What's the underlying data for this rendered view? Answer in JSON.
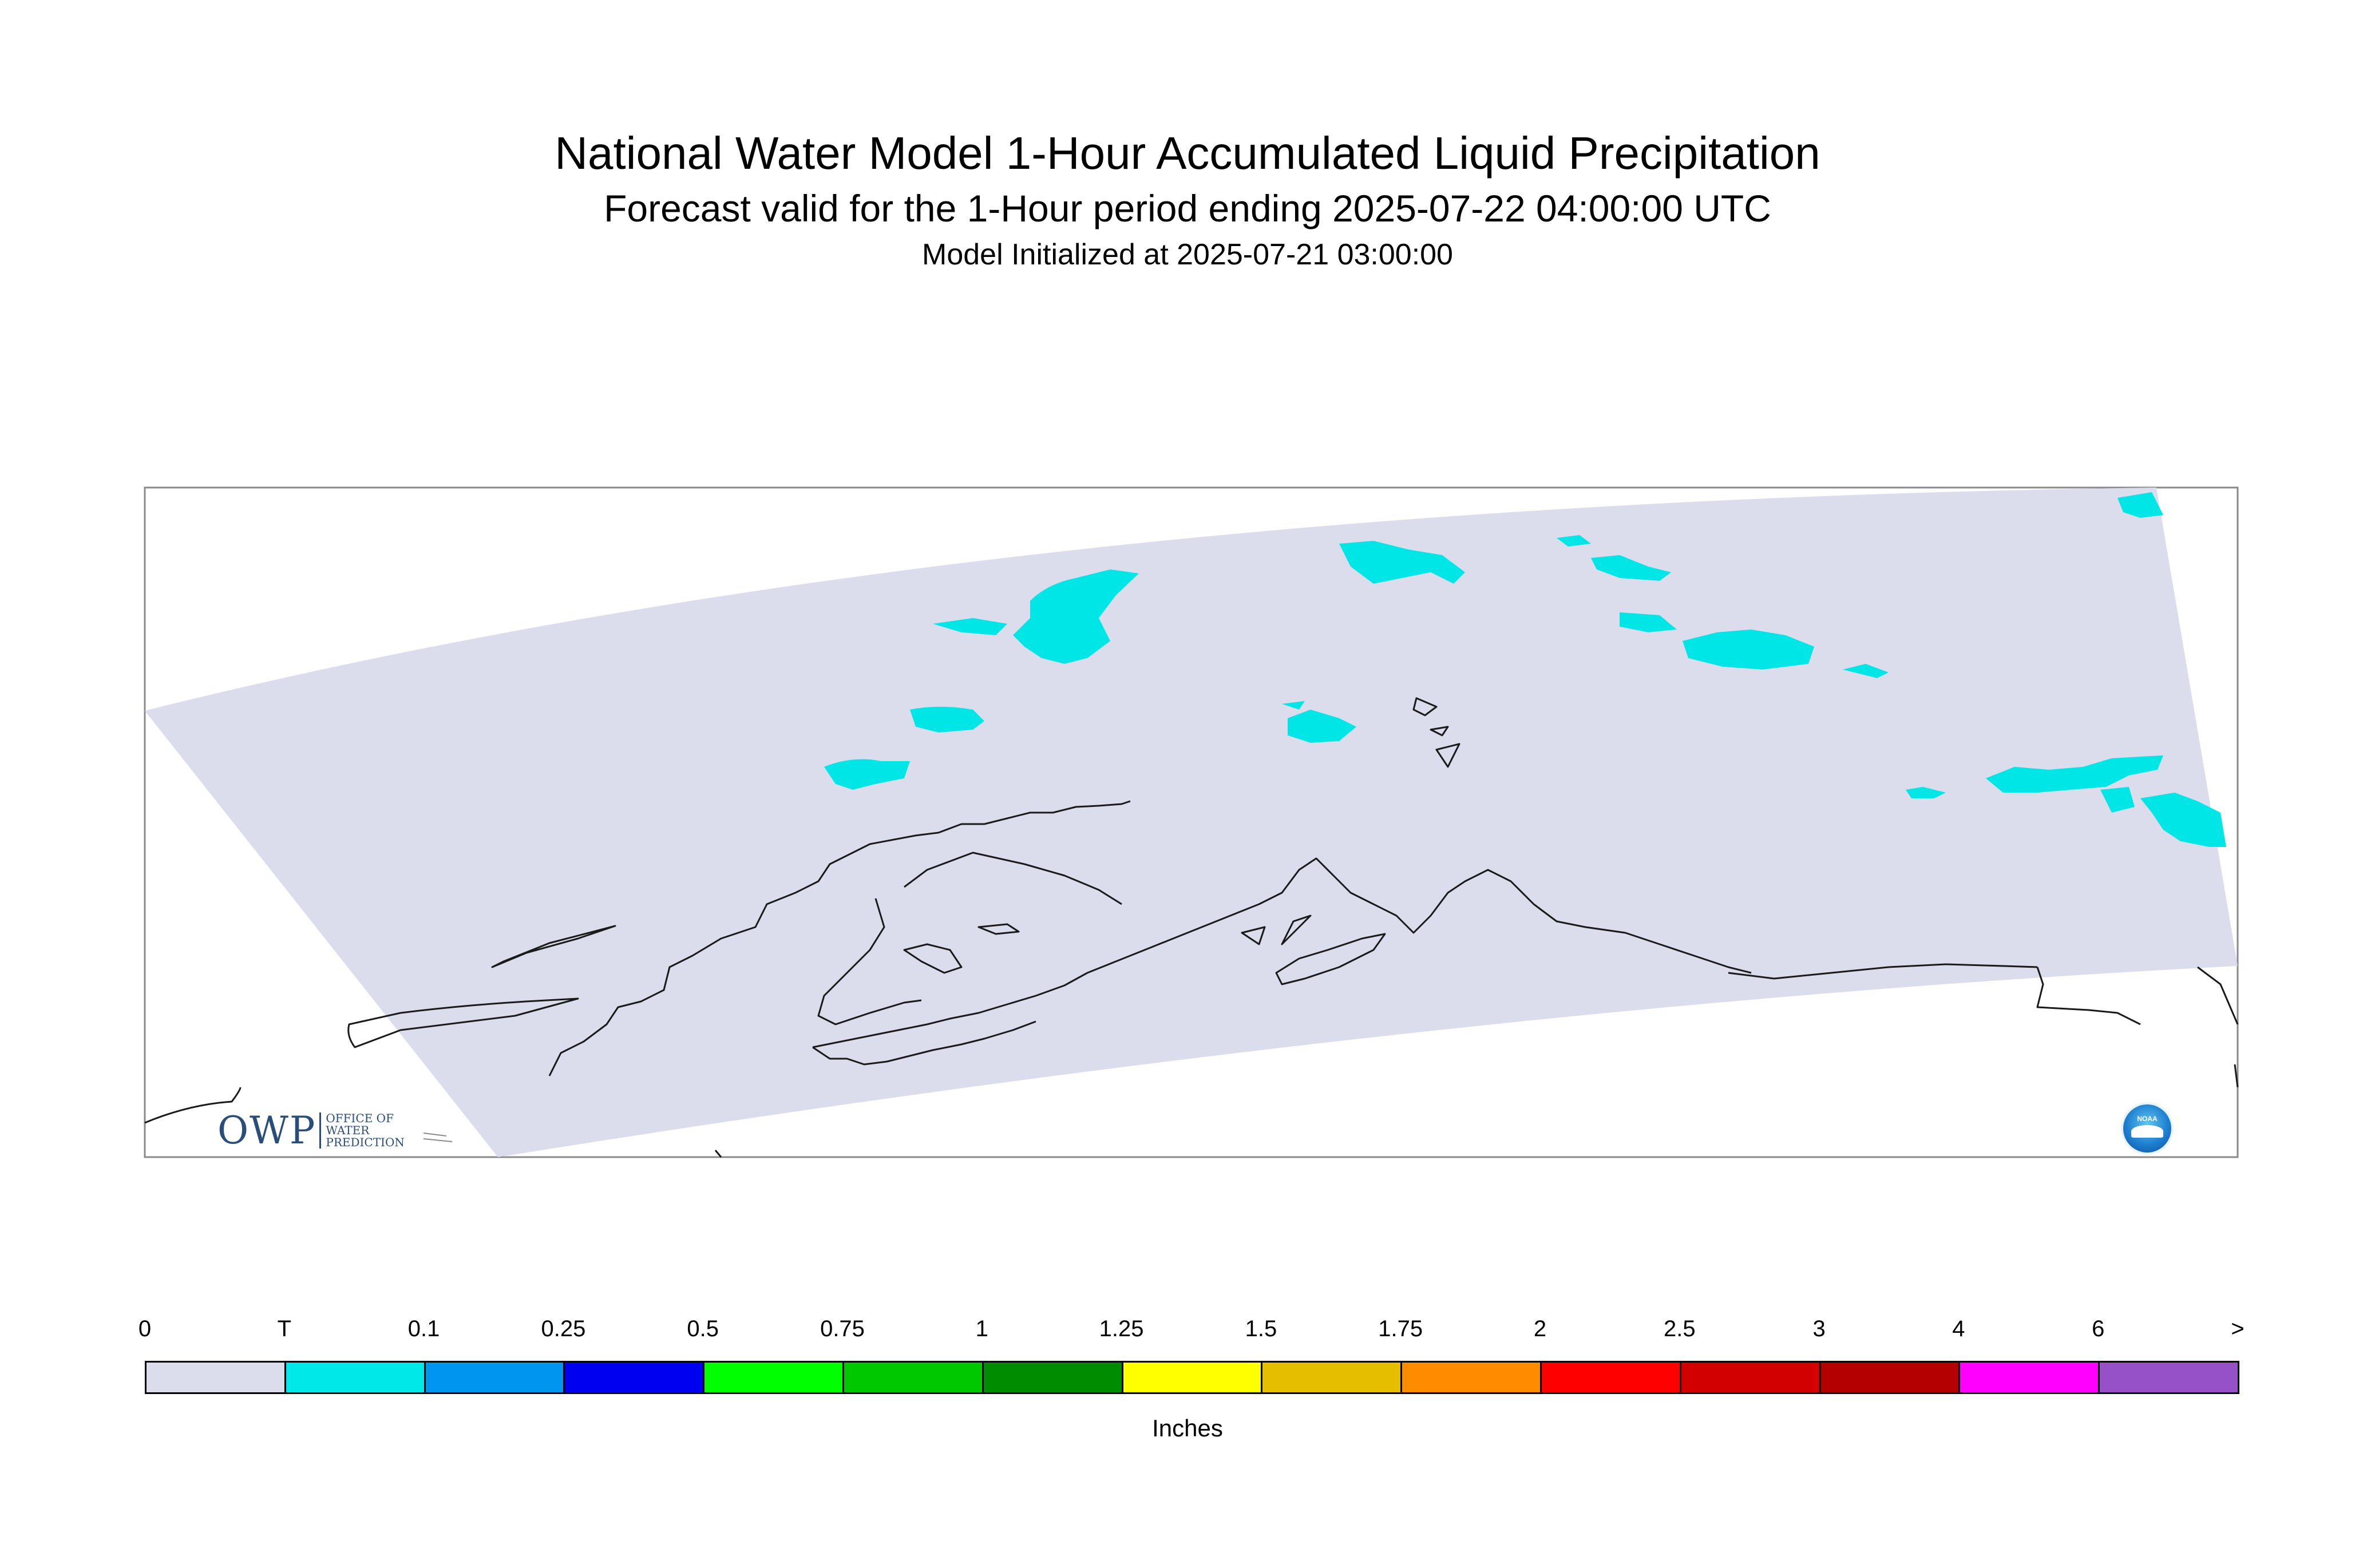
{
  "title": {
    "line1": "National Water Model 1-Hour Accumulated Liquid Precipitation",
    "line2": "Forecast valid for the 1-Hour period ending 2025-07-22 04:00:00 UTC",
    "line3": "Model Initialized at 2025-07-21 03:00:00"
  },
  "map": {
    "region": "Alaska",
    "domain_color": "#dbdcec",
    "precip_color": "#00e5e5",
    "coastline_color": "#000000"
  },
  "logos": {
    "owp": {
      "main": "OWP",
      "sub_line1": "OFFICE OF",
      "sub_line2": "WATER",
      "sub_line3": "PREDICTION"
    },
    "noaa": {
      "label": "NOAA"
    }
  },
  "colorbar": {
    "tick_labels": [
      "0",
      "T",
      "0.1",
      "0.25",
      "0.5",
      "0.75",
      "1",
      "1.25",
      "1.5",
      "1.75",
      "2",
      "2.5",
      "3",
      "4",
      "6",
      ">"
    ],
    "colors": [
      "#dbdcec",
      "#00e8e8",
      "#0096f0",
      "#0000f0",
      "#00ff00",
      "#00c800",
      "#008c00",
      "#ffff00",
      "#e6be00",
      "#ff8c00",
      "#ff0000",
      "#d20000",
      "#b40000",
      "#ff00ff",
      "#9650c8"
    ],
    "units_label": "Inches"
  }
}
